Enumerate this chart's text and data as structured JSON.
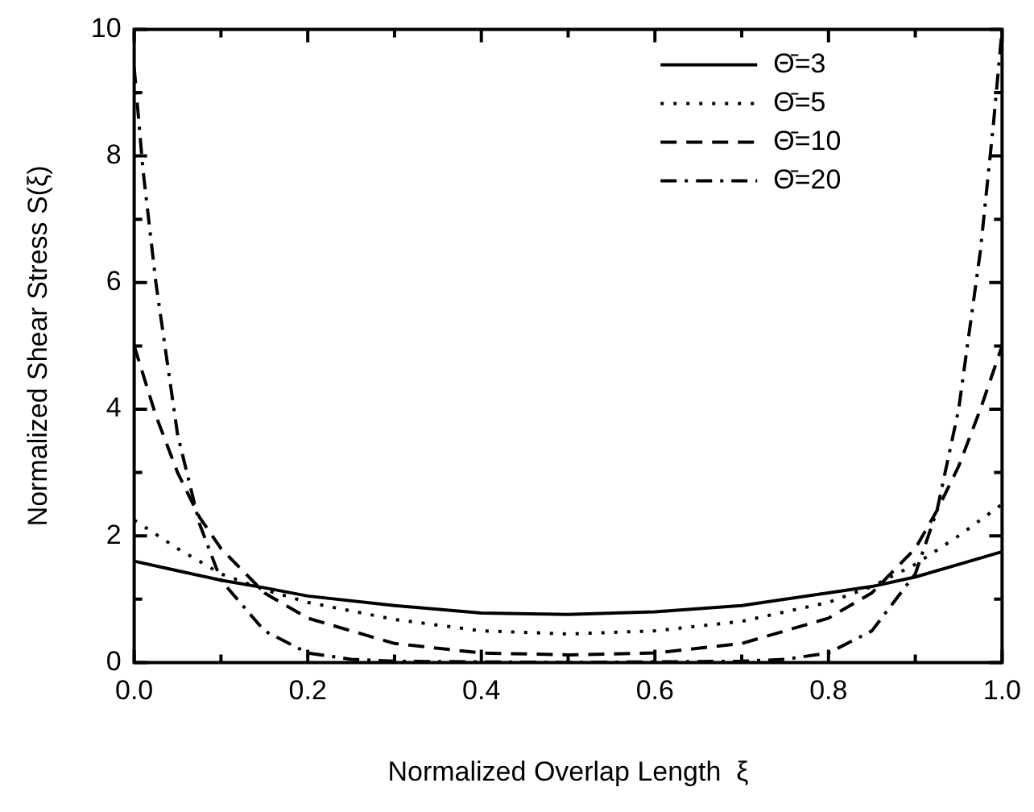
{
  "chart_data": {
    "type": "line",
    "xlabel": "Normalized Overlap Length  ξ",
    "ylabel": "Normalized Shear Stress S(ξ)",
    "xlim": [
      0,
      1
    ],
    "ylim": [
      0,
      10
    ],
    "xticks": [
      {
        "value": 0,
        "label": "0.0"
      },
      {
        "value": 0.1,
        "label": null
      },
      {
        "value": 0.2,
        "label": "0.2"
      },
      {
        "value": 0.3,
        "label": null
      },
      {
        "value": 0.4,
        "label": "0.4"
      },
      {
        "value": 0.5,
        "label": null
      },
      {
        "value": 0.6,
        "label": "0.6"
      },
      {
        "value": 0.7,
        "label": null
      },
      {
        "value": 0.8,
        "label": "0.8"
      },
      {
        "value": 0.9,
        "label": null
      },
      {
        "value": 1,
        "label": "1.0"
      }
    ],
    "yticks": [
      0,
      {
        "value": 1,
        "label": null
      },
      2,
      {
        "value": 3,
        "label": null
      },
      4,
      {
        "value": 5,
        "label": null
      },
      6,
      {
        "value": 7,
        "label": null
      },
      8,
      {
        "value": 9,
        "label": null
      },
      10
    ],
    "legend": "top right",
    "marker": "none",
    "series": [
      {
        "name": "Θ̄=3",
        "color": "#000000",
        "line_style": "solid",
        "x": [
          0,
          0.05,
          0.1,
          0.15,
          0.2,
          0.3,
          0.4,
          0.5,
          0.6,
          0.7,
          0.8,
          0.85,
          0.9,
          0.95,
          1
        ],
        "values": [
          1.6,
          1.45,
          1.3,
          1.18,
          1.05,
          0.9,
          0.78,
          0.76,
          0.8,
          0.9,
          1.1,
          1.2,
          1.35,
          1.55,
          1.75
        ]
      },
      {
        "name": "Θ̄=5",
        "color": "#000000",
        "line_style": "dotted",
        "x": [
          0,
          0.05,
          0.1,
          0.15,
          0.2,
          0.3,
          0.4,
          0.5,
          0.6,
          0.7,
          0.8,
          0.85,
          0.9,
          0.95,
          1
        ],
        "values": [
          2.25,
          1.8,
          1.4,
          1.15,
          0.95,
          0.68,
          0.5,
          0.45,
          0.5,
          0.65,
          0.95,
          1.2,
          1.55,
          2.0,
          2.5
        ]
      },
      {
        "name": "Θ̄=10",
        "color": "#000000",
        "line_style": "dashed",
        "x": [
          0,
          0.025,
          0.05,
          0.075,
          0.1,
          0.15,
          0.2,
          0.3,
          0.4,
          0.5,
          0.6,
          0.7,
          0.8,
          0.85,
          0.9,
          0.925,
          0.95,
          0.975,
          1
        ],
        "values": [
          5.0,
          3.9,
          3.0,
          2.3,
          1.8,
          1.1,
          0.7,
          0.3,
          0.15,
          0.12,
          0.15,
          0.3,
          0.7,
          1.1,
          1.8,
          2.4,
          3.1,
          4.0,
          5.0
        ]
      },
      {
        "name": "Θ̄=20",
        "color": "#000000",
        "line_style": "dashdot",
        "x": [
          0,
          0.01,
          0.025,
          0.05,
          0.075,
          0.1,
          0.15,
          0.2,
          0.25,
          0.3,
          0.5,
          0.7,
          0.75,
          0.8,
          0.85,
          0.9,
          0.925,
          0.95,
          0.975,
          0.99,
          1
        ],
        "values": [
          9.4,
          7.8,
          6.0,
          3.6,
          2.2,
          1.3,
          0.5,
          0.15,
          0.05,
          0.02,
          0,
          0.02,
          0.05,
          0.15,
          0.5,
          1.4,
          2.4,
          4.0,
          6.5,
          8.5,
          10.0
        ]
      }
    ]
  }
}
